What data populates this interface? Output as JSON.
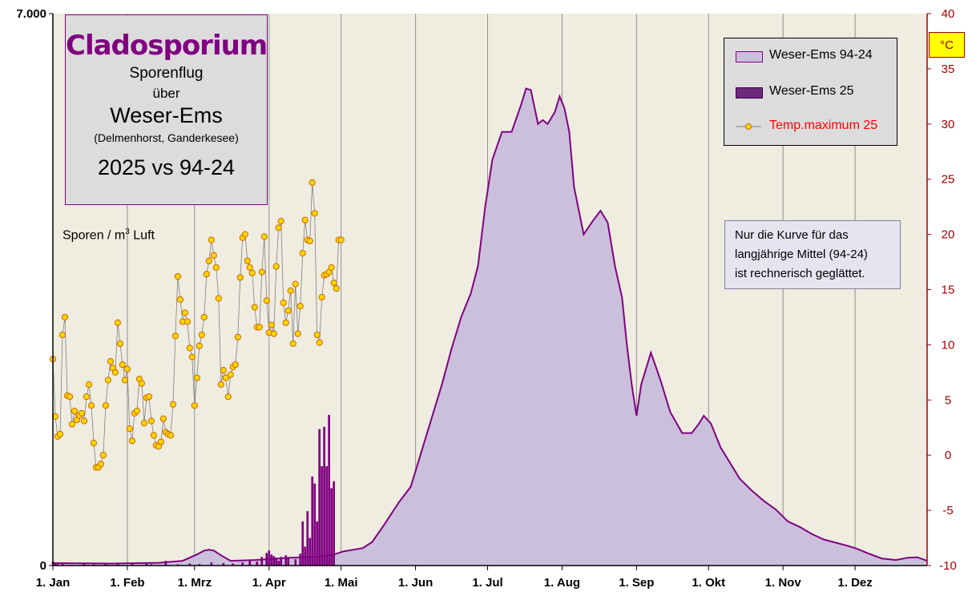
{
  "title_box": {
    "title": "Cladosporium",
    "line1": "Sporenflug",
    "line2": "über",
    "line3": "Weser-Ems",
    "line4": "(Delmenhorst,  Ganderkesee)",
    "line5": "2025 vs 94-24"
  },
  "unit_label": {
    "text": "Sporen / m",
    "sup": "3",
    "suffix": "  Luft"
  },
  "celsius_label": "°C",
  "note": "Nur  die Kurve für das\nlangjährige  Mittel (94-24)\nist rechnerisch  geglättet.",
  "legend": [
    {
      "label": "Weser-Ems 94-24",
      "color": "#cbc0dc",
      "border": "#800080"
    },
    {
      "label": "Weser-Ems 25",
      "color": "#6a2a7a",
      "border": "#400050"
    },
    {
      "label": "Temp.maximum 25",
      "color": "#ffcc00",
      "text_color": "#ff0000"
    }
  ],
  "colors": {
    "plot_bg": "#efece0",
    "avg_fill": "#cbc0dc",
    "avg_line": "#800080",
    "current_fill": "#800080",
    "temp_marker": "#ffd700",
    "temp_marker_edge": "#cc6600",
    "grid": "#909090",
    "right_axis": "#a00000"
  },
  "chart_data": {
    "type": "area",
    "x_unit": "day of year",
    "x_range": [
      1,
      365
    ],
    "y_left_range": [
      0,
      7000
    ],
    "y_left_ticks": [
      "0",
      "7.000"
    ],
    "y_right_range": [
      -10,
      40
    ],
    "y_right_ticks": [
      "-10",
      "-5",
      "0",
      "5",
      "10",
      "15",
      "20",
      "25",
      "30",
      "35",
      "40"
    ],
    "x_tick_labels": [
      "1. Jan",
      "1. Feb",
      "1. Mrz",
      "1. Apr",
      "1. Mai",
      "1. Jun",
      "1. Jul",
      "1. Aug",
      "1. Sep",
      "1. Okt",
      "1. Nov",
      "1. Dez"
    ],
    "x_ticks_day": [
      1,
      32,
      60,
      91,
      121,
      152,
      182,
      213,
      244,
      274,
      305,
      335
    ],
    "series": [
      {
        "name": "Weser-Ems 94-24",
        "axis": "left",
        "points": [
          [
            1,
            30
          ],
          [
            25,
            25
          ],
          [
            45,
            35
          ],
          [
            55,
            60
          ],
          [
            61,
            140
          ],
          [
            64,
            190
          ],
          [
            66,
            200
          ],
          [
            68,
            190
          ],
          [
            71,
            130
          ],
          [
            75,
            60
          ],
          [
            85,
            70
          ],
          [
            100,
            100
          ],
          [
            110,
            110
          ],
          [
            118,
            140
          ],
          [
            122,
            180
          ],
          [
            130,
            220
          ],
          [
            134,
            300
          ],
          [
            139,
            520
          ],
          [
            145,
            800
          ],
          [
            150,
            1000
          ],
          [
            154,
            1400
          ],
          [
            158,
            1800
          ],
          [
            163,
            2300
          ],
          [
            167,
            2750
          ],
          [
            171,
            3150
          ],
          [
            175,
            3450
          ],
          [
            178,
            3800
          ],
          [
            181,
            4550
          ],
          [
            184,
            5150
          ],
          [
            188,
            5500
          ],
          [
            192,
            5500
          ],
          [
            196,
            5850
          ],
          [
            198,
            6050
          ],
          [
            200,
            6030
          ],
          [
            203,
            5600
          ],
          [
            205,
            5650
          ],
          [
            207,
            5600
          ],
          [
            210,
            5750
          ],
          [
            212,
            5950
          ],
          [
            214,
            5800
          ],
          [
            216,
            5500
          ],
          [
            218,
            4800
          ],
          [
            222,
            4200
          ],
          [
            226,
            4380
          ],
          [
            229,
            4500
          ],
          [
            232,
            4350
          ],
          [
            235,
            3800
          ],
          [
            238,
            3400
          ],
          [
            240,
            2800
          ],
          [
            242,
            2300
          ],
          [
            244,
            1900
          ],
          [
            246,
            2300
          ],
          [
            250,
            2700
          ],
          [
            254,
            2350
          ],
          [
            258,
            1950
          ],
          [
            263,
            1680
          ],
          [
            267,
            1680
          ],
          [
            270,
            1800
          ],
          [
            272,
            1900
          ],
          [
            275,
            1800
          ],
          [
            279,
            1500
          ],
          [
            283,
            1300
          ],
          [
            287,
            1100
          ],
          [
            292,
            950
          ],
          [
            297,
            820
          ],
          [
            302,
            710
          ],
          [
            307,
            560
          ],
          [
            312,
            490
          ],
          [
            317,
            400
          ],
          [
            322,
            330
          ],
          [
            327,
            290
          ],
          [
            332,
            250
          ],
          [
            336,
            210
          ],
          [
            340,
            160
          ],
          [
            346,
            90
          ],
          [
            352,
            70
          ],
          [
            357,
            100
          ],
          [
            361,
            105
          ],
          [
            365,
            60
          ]
        ]
      },
      {
        "name": "Weser-Ems 25",
        "axis": "left",
        "bars": [
          [
            1,
            50
          ],
          [
            2,
            20
          ],
          [
            3,
            15
          ],
          [
            5,
            20
          ],
          [
            9,
            10
          ],
          [
            14,
            20
          ],
          [
            18,
            15
          ],
          [
            23,
            30
          ],
          [
            28,
            15
          ],
          [
            34,
            20
          ],
          [
            40,
            25
          ],
          [
            42,
            15
          ],
          [
            48,
            60
          ],
          [
            53,
            15
          ],
          [
            58,
            25
          ],
          [
            62,
            20
          ],
          [
            67,
            40
          ],
          [
            72,
            30
          ],
          [
            76,
            25
          ],
          [
            80,
            40
          ],
          [
            83,
            60
          ],
          [
            86,
            50
          ],
          [
            88,
            110
          ],
          [
            90,
            160
          ],
          [
            91,
            190
          ],
          [
            92,
            140
          ],
          [
            93,
            120
          ],
          [
            94,
            100
          ],
          [
            95,
            60
          ],
          [
            96,
            110
          ],
          [
            98,
            130
          ],
          [
            99,
            90
          ],
          [
            102,
            80
          ],
          [
            104,
            150
          ],
          [
            105,
            560
          ],
          [
            106,
            240
          ],
          [
            107,
            690
          ],
          [
            108,
            350
          ],
          [
            109,
            1130
          ],
          [
            110,
            1040
          ],
          [
            111,
            560
          ],
          [
            112,
            1730
          ],
          [
            113,
            1260
          ],
          [
            114,
            1760
          ],
          [
            115,
            1260
          ],
          [
            116,
            1910
          ],
          [
            117,
            980
          ],
          [
            118,
            1070
          ]
        ]
      },
      {
        "name": "Temp.maximum 25",
        "axis": "right",
        "values": [
          8.7,
          3.5,
          1.7,
          1.9,
          10.9,
          12.5,
          5.4,
          5.3,
          2.8,
          4.0,
          3.2,
          3.6,
          3.8,
          3.1,
          5.3,
          6.4,
          4.5,
          1.1,
          -1.1,
          -1.1,
          -0.8,
          0.0,
          4.5,
          6.8,
          8.5,
          7.9,
          7.5,
          12.0,
          10.1,
          8.2,
          6.8,
          7.8,
          2.4,
          1.3,
          3.8,
          4.0,
          6.9,
          6.5,
          2.9,
          5.2,
          5.3,
          3.1,
          1.8,
          0.9,
          0.8,
          1.2,
          3.3,
          2.1,
          1.9,
          1.8,
          4.6,
          10.8,
          16.2,
          14.1,
          12.1,
          12.9,
          12.1,
          9.7,
          8.9,
          4.5,
          7.0,
          9.9,
          10.9,
          12.5,
          16.4,
          17.6,
          19.5,
          18.1,
          17.0,
          14.2,
          6.4,
          7.7,
          7.0,
          5.3,
          7.3,
          8.0,
          8.2,
          10.7,
          16.1,
          19.7,
          20.0,
          17.6,
          17.0,
          16.5,
          13.4,
          11.6,
          11.6,
          16.6,
          19.8,
          14.0,
          11.1,
          11.8,
          11.0,
          17.1,
          20.6,
          21.2,
          13.8,
          12.0,
          13.1,
          14.9,
          10.1,
          15.5,
          11.0,
          13.5,
          18.3,
          21.3,
          19.5,
          19.4,
          24.7,
          21.9,
          10.9,
          10.2,
          14.3,
          16.3,
          16.4,
          16.6,
          17.0,
          15.6,
          15.1,
          19.5,
          19.5
        ]
      }
    ]
  }
}
